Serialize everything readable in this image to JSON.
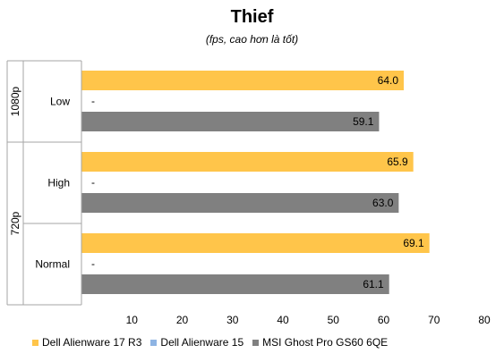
{
  "chart_data": {
    "type": "bar",
    "orientation": "horizontal",
    "title": "Thief",
    "subtitle": "(fps, cao hơn là tốt)",
    "xlim": [
      0,
      80
    ],
    "x_ticks": [
      "10",
      "20",
      "30",
      "40",
      "50",
      "60",
      "70",
      "80"
    ],
    "grid": false,
    "legend_position": "bottom",
    "groups": [
      {
        "label": "1080p",
        "categories": [
          {
            "label": "Low",
            "values": [
              64.0,
              null,
              59.1
            ],
            "labels": [
              "64.0",
              "-",
              "59.1"
            ]
          }
        ]
      },
      {
        "label": "720p",
        "categories": [
          {
            "label": "High",
            "values": [
              65.9,
              null,
              63.0
            ],
            "labels": [
              "65.9",
              "-",
              "63.0"
            ]
          },
          {
            "label": "Normal",
            "values": [
              69.1,
              null,
              61.1
            ],
            "labels": [
              "69.1",
              "-",
              "61.1"
            ]
          }
        ]
      }
    ],
    "series": [
      {
        "name": "Dell Alienware 17 R3",
        "color": "#FFC54A"
      },
      {
        "name": "Dell Alienware 15",
        "color": "#8EB4E3"
      },
      {
        "name": "MSI Ghost Pro GS60 6QE",
        "color": "#808080"
      }
    ]
  }
}
